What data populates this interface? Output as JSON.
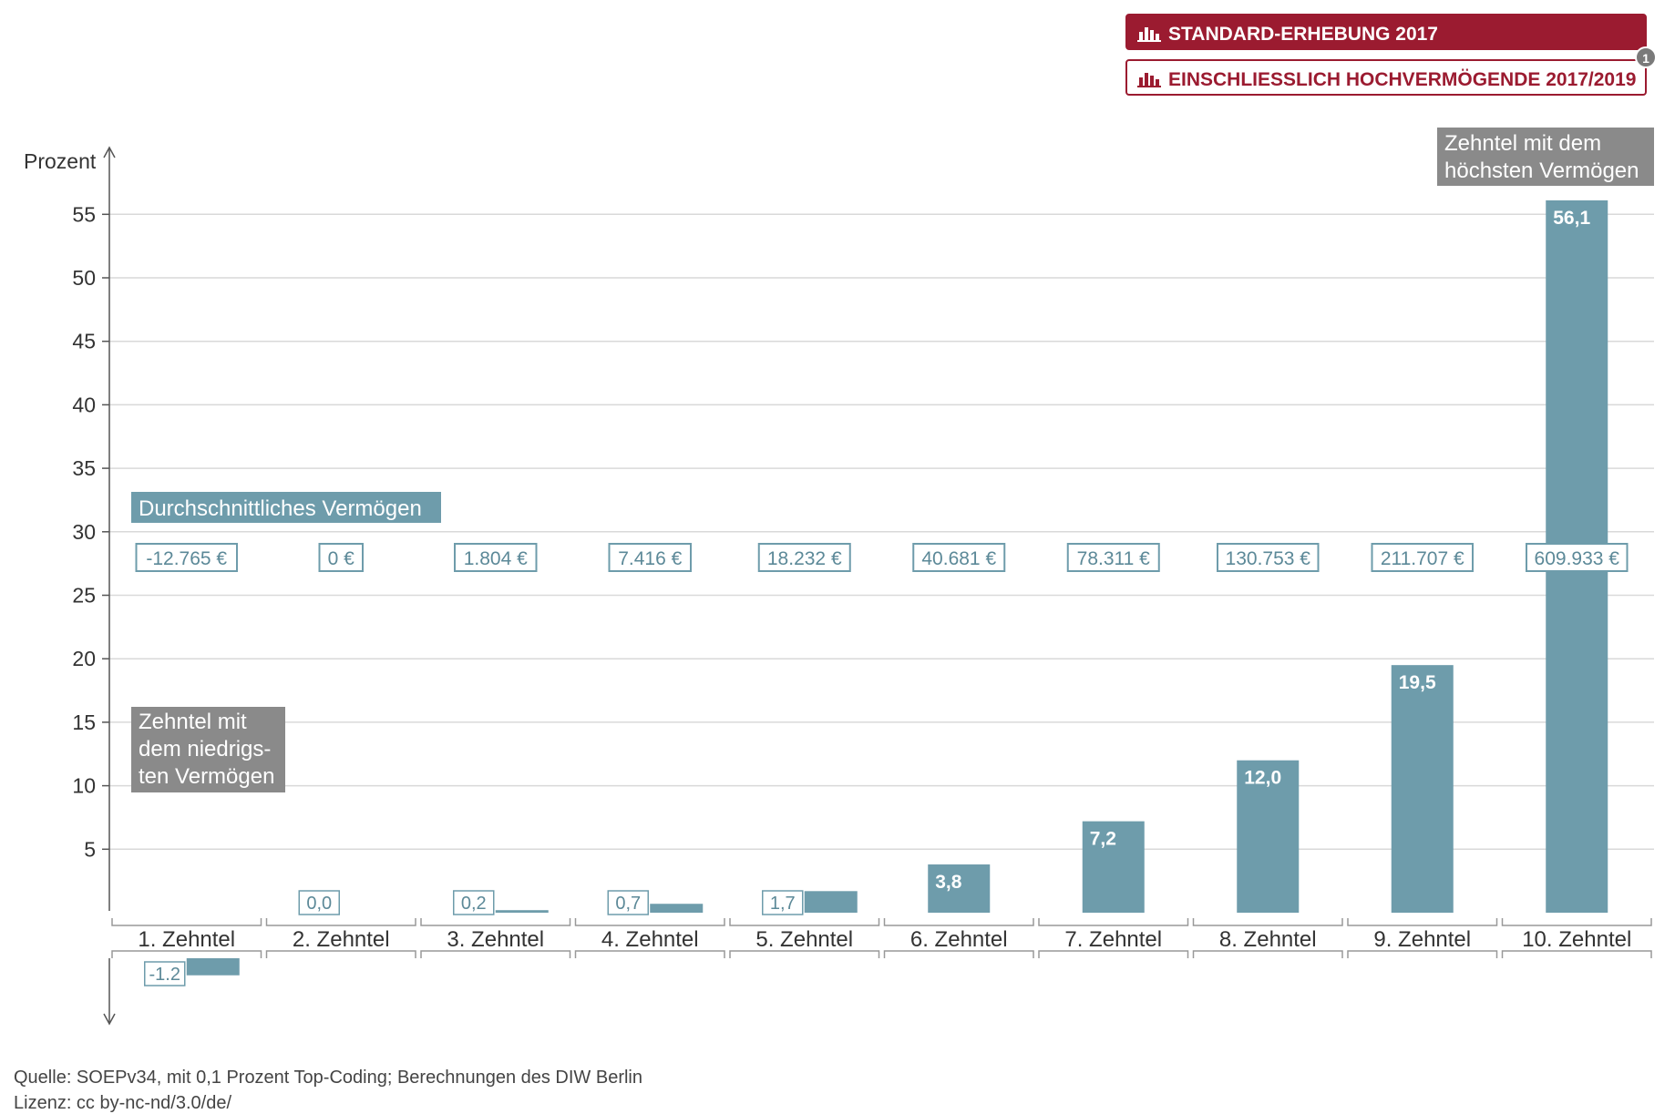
{
  "toggles": [
    {
      "label": "STANDARD-ERHEBUNG 2017",
      "active": true
    },
    {
      "label": "EINSCHLIESSLICH HOCHVERMÖGENDE 2017/2019",
      "active": false,
      "badge": "1"
    }
  ],
  "colors": {
    "bar": "#6e9cab",
    "accent": "#9b1b30",
    "annotation_bg": "#8a8a8a",
    "grid": "#d9d9d9",
    "axis": "#555555",
    "text": "#333333"
  },
  "annotations": {
    "avg_label": "Durchschnittliches Vermögen",
    "lowest": [
      "Zehntel mit",
      "dem niedrigs-",
      "ten Vermögen"
    ],
    "highest": [
      "Zehntel mit dem",
      "höchsten Vermögen"
    ]
  },
  "chart_data": {
    "type": "bar",
    "ylabel": "Prozent",
    "ylim": [
      -8.5,
      60
    ],
    "yticks": [
      5,
      10,
      15,
      20,
      25,
      30,
      35,
      40,
      45,
      50,
      55
    ],
    "grid": true,
    "categories": [
      "1. Zehntel",
      "2. Zehntel",
      "3. Zehntel",
      "4. Zehntel",
      "5. Zehntel",
      "6. Zehntel",
      "7. Zehntel",
      "8. Zehntel",
      "9. Zehntel",
      "10. Zehntel"
    ],
    "values": [
      -1.2,
      0.0,
      0.2,
      0.7,
      1.7,
      3.8,
      7.2,
      12.0,
      19.5,
      56.1
    ],
    "value_labels": [
      "-1.2",
      "0,0",
      "0,2",
      "0,7",
      "1,7",
      "3,8",
      "7,2",
      "12,0",
      "19,5",
      "56,1"
    ],
    "average_wealth": [
      "-12.765 €",
      "0 €",
      "1.804 €",
      "7.416 €",
      "18.232 €",
      "40.681 €",
      "78.311 €",
      "130.753 €",
      "211.707 €",
      "609.933 €"
    ]
  },
  "source": "Quelle: SOEPv34, mit 0,1 Prozent Top-Coding; Berechnungen des DIW Berlin",
  "license": "Lizenz: cc by-nc-nd/3.0/de/"
}
